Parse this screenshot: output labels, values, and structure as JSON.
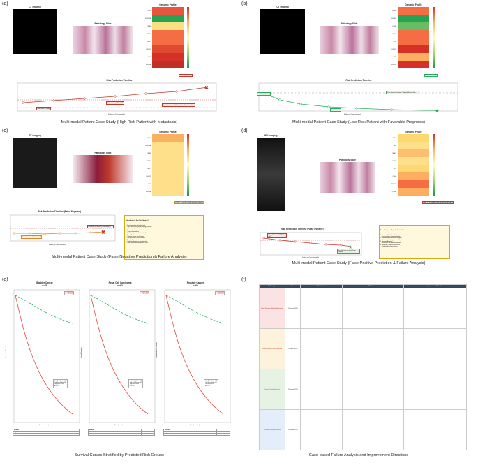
{
  "panels": {
    "a": {
      "label": "(a)",
      "ct_title": "CT Imaging",
      "path_title": "Pathology Slide",
      "genomic_title": "Genomic Profile",
      "genes": [
        "TP53",
        "CDKN2A",
        "KRAS",
        "PTEN",
        "MYC",
        "FGFR1",
        "RB1",
        "PIK3CA"
      ],
      "gene_colors": [
        "#e9543c",
        "#2aa253",
        "#f9e080",
        "#f46d43",
        "#f46d43",
        "#e04a30",
        "#d73027",
        "#c03024"
      ],
      "timeline_title": "Risk Prediction Timeline",
      "xlabel": "Follow-up Time (months)",
      "ylabel": "Risk Score",
      "legend": [
        "Predicted Risk",
        "High Risk Threshold (0.7)",
        "Metastasis Event (6 months)"
      ],
      "caption": "Multi-modal Patient Case Study (High-Risk Patient with Metastasis)",
      "badge": "TMB: 18.9 mut/Mb",
      "notes": [
        "Initial Risk 0.67 (High)",
        "Risk Increasing 0.81 → 0.87",
        "Metastasis Confirmed Prediction Lead Time: 2 months"
      ],
      "x_ticks": [
        "0",
        "1",
        "2",
        "3",
        "4",
        "5",
        "6"
      ]
    },
    "b": {
      "label": "(b)",
      "ct_title": "CT Imaging",
      "path_title": "Pathology Slide",
      "genomic_title": "Genomic Profile",
      "genes": [
        "EGFR",
        "CDKN2A",
        "KRAS",
        "PTEN",
        "MYC",
        "FGFR1",
        "RB1",
        "PIK3CA"
      ],
      "gene_colors": [
        "#f46d43",
        "#2aa253",
        "#66bd63",
        "#f46d43",
        "#f46d43",
        "#d73027",
        "#fdae61",
        "#d73027"
      ],
      "timeline_title": "Risk Prediction Timeline",
      "xlabel": "Follow-up Time (months)",
      "ylabel": "Risk Score",
      "legend": [
        "Predicted Risk",
        "Low Risk Threshold",
        "5-Year Survival (No Metastasis)"
      ],
      "caption": "Multi-modal Patient Case Study (Low-Risk Patient with Favorable Prognosis)",
      "badge": "TMB: 7.5 mut/Mb",
      "notes": [
        "Initial Risk 0.39 (Low)",
        "Stable Low Risk",
        "5-Year Survival Prediction Confirmed: Disease-Free"
      ],
      "x_ticks": [
        "0",
        "10",
        "20",
        "30",
        "40",
        "50",
        "60"
      ]
    },
    "c": {
      "label": "(c)",
      "ct_title": "CT Imaging",
      "path_title": "Pathology Slide",
      "genomic_title": "Genomic Profile",
      "genes": [
        "TP53",
        "CDKN2A",
        "KRAS",
        "PTEN",
        "MYC",
        "FGFR1",
        "RB1",
        "PIK3CA"
      ],
      "gene_colors": [
        "#f9b060",
        "#fee08b",
        "#fee08b",
        "#fee08b",
        "#fee08b",
        "#fee08b",
        "#fee08b",
        "#fee08b"
      ],
      "timeline_title": "Risk Prediction Timeline (False Negative)",
      "xlabel": "Follow-up Time (months)",
      "ylabel": "Risk Score",
      "legend": [
        "Predicted Risk (Actual)",
        "Risk Threshold",
        "Metastasis (Missed)"
      ],
      "caption": "Multi-modal Patient Case Study (False Negative Prediction & Failure Analysis)",
      "badge": "TMB: 7.3 mut/Mb (High mutational burden)",
      "notes": [
        "Missed Prediction Risk Score 0.43",
        "Metastasis at 6 months (False Negative)"
      ],
      "analysis_title": "Failure Analysis: Why False Negative?",
      "analysis_text": "1. Micro-metastasis Detection Limit\n   - Sub-5 mm lesions below imaging resolution\n   - CT sensitivity insufficient for small lesions\n2. Genomic Heterogeneity\n   - Single-region biopsy\n   - Missed aggressive subclonal cells\n3. Tumor Microenvironment\n   - Immune escape mechanisms\n   - Not captured in current features\n4. Temporal Dynamics\n   - Rapid progression in short interval\n   - Model trained on slow-growing cases",
      "x_ticks": [
        "0",
        "1",
        "2",
        "3",
        "4",
        "5",
        "6"
      ]
    },
    "d": {
      "label": "(d)",
      "ct_title": "MRI Imaging",
      "path_title": "Pathology Slide",
      "genomic_title": "Genomic Profile",
      "genes": [
        "TP53",
        "NRL",
        "MAP3",
        "PTEN",
        "BCL",
        "CDH1",
        "PROM1",
        "CTLA4"
      ],
      "gene_colors": [
        "#fdd870",
        "#fee08b",
        "#fdbf6f",
        "#fee08b",
        "#fdd870",
        "#fdae61",
        "#f46d43",
        "#fdae61"
      ],
      "timeline_title": "Risk Prediction Timeline (False Positive)",
      "xlabel": "Follow-up Time (months)",
      "ylabel": "Risk Score",
      "legend": [
        "Predicted Risk (Actual)",
        "High Risk Threshold",
        "5-Year Survival (No Event)"
      ],
      "caption": "Multi-modal Patient Case Study (False Positive Prediction & Failure Analysis)",
      "badge": "TMB: 11.3 mut/Mb (High mutational burden)",
      "notes": [
        "Wrong Prediction 0.79 (High risk)",
        "No metastasis at 5 years: False Positive"
      ],
      "analysis_title": "Failure Analysis: Why False Positive?",
      "analysis_text": "1. Treatment Effect Not Modeled\n   - Post-treatment response signals\n2. Inflammatory vs. Malignant Imaging\n   - Post-surgical changes resembling tumor\n3. Genomic Ambiguity\n   - BRCA-like / HR-deficient variants\n4. Comorbid Treatment Interactions\n   - Confounding clinical factors",
      "x_ticks": [
        "0",
        "10",
        "20",
        "30",
        "40",
        "50",
        "60"
      ]
    },
    "e": {
      "label": "(e)",
      "caption": "Survival Curves Stratified by Predicted Risk Groups",
      "cohorts": [
        {
          "title": "Bladder Cancer",
          "n": "n=78",
          "ylabel": "Metastasis-Free Survival"
        },
        {
          "title": "Renal Cell Carcinoma",
          "n": "n=62",
          "ylabel": "Overall Survival"
        },
        {
          "title": "Prostate Cancer",
          "n": "n=60",
          "ylabel": "Metastasis-Free Survival"
        }
      ],
      "legend": [
        "High Risk",
        "Low Risk"
      ],
      "xlabel": "Time (months)",
      "risk_header": "Months",
      "risk_rows": [
        "High Risk",
        "Low Risk"
      ],
      "stats_text": "High Risk: Median: NR\nLow Risk: Median: NR\nLog-rank p<0.001\nHR: 3.12"
    },
    "f": {
      "label": "(f)",
      "caption": "Case-based Failure Analysis and Improvement Directions",
      "headers": [
        "Failure Type",
        "Cases",
        "Clinical Impact",
        "Root Causes",
        "Improvement Direction"
      ],
      "rows": [
        {
          "type": "False Negative (Missed Metastasis)",
          "cases": "15 cases (18%)",
          "color": "#fbe3e3"
        },
        {
          "type": "False Positive (Over-prediction)",
          "cases": "8 cases (10%)",
          "color": "#fdf3dc"
        },
        {
          "type": "Survival Prediction Error",
          "cases": "12 cases (14%)",
          "color": "#e6f2e3"
        },
        {
          "type": "Treatment Response Error",
          "cases": "10 cases (12%)",
          "color": "#e3eefa"
        }
      ]
    }
  }
}
